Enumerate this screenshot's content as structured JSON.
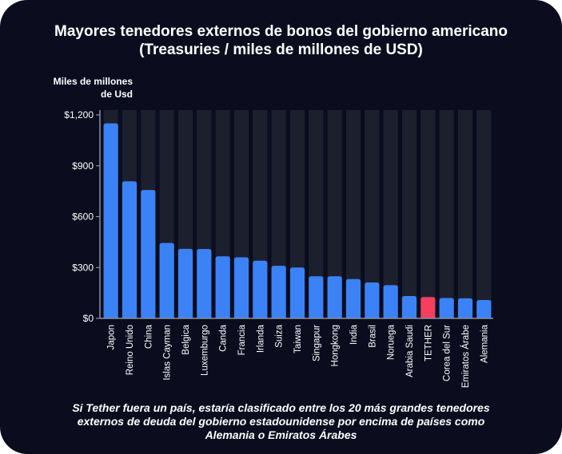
{
  "colors": {
    "background": "#0b0d1f",
    "bar": "#3b82f6",
    "highlight": "#f43f5e",
    "track": "#1c1f2e",
    "axis": "#8a90a3",
    "text": "#ffffff"
  },
  "chart_data": {
    "type": "bar",
    "title_line1": "Mayores tenedores externos de bonos del gobierno americano",
    "title_line2": "(Treasuries / miles de millones de USD)",
    "ylabel_line1": "Miles de millones",
    "ylabel_line2": "de Usd",
    "ylim": [
      0,
      1200
    ],
    "yticks": [
      0,
      300,
      600,
      900,
      1200
    ],
    "ytick_labels": [
      "$0",
      "$300",
      "$600",
      "$900",
      "$1,200"
    ],
    "categories": [
      "Japon",
      "Reino Unido",
      "China",
      "Islas Cayman",
      "Belgica",
      "Luxemburgo",
      "Canda",
      "Francia",
      "Irlanda",
      "Suiza",
      "Taiwan",
      "Singapur",
      "Hongkong",
      "India",
      "Brasil",
      "Noruega",
      "Arabia Saudi",
      "TETHER",
      "Corea del Sur",
      "Emiratos Árabe",
      "Alemania"
    ],
    "values": [
      1150,
      808,
      757,
      445,
      410,
      409,
      366,
      360,
      340,
      310,
      300,
      248,
      248,
      232,
      212,
      196,
      132,
      126,
      120,
      118,
      108
    ],
    "highlight": "TETHER",
    "grid": false
  },
  "caption": {
    "line1": "Si Tether fuera un país, estaría clasificado entre los 20 más grandes tenedores",
    "line2": "externos de deuda del gobierno estadounidense por encima de países como",
    "line3": "Alemania o Emiratos Árabes"
  }
}
